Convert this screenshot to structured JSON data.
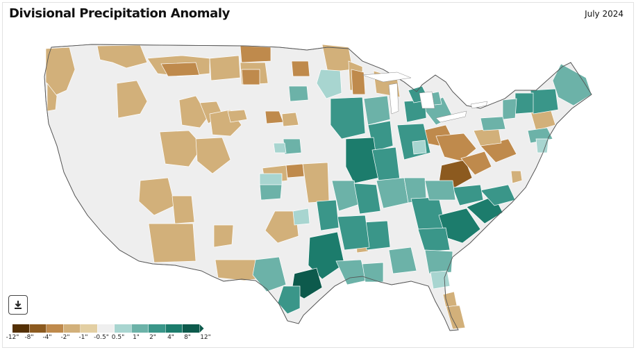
{
  "header": {
    "title": "Divisional Precipitation Anomaly",
    "date": "July 2024"
  },
  "toolbar": {
    "download_icon": "download-icon"
  },
  "legend": {
    "labels": [
      "-12\"",
      "-8\"",
      "-4\"",
      "-2\"",
      "-1\"",
      "-0.5\"",
      "0.5\"",
      "1\"",
      "2\"",
      "4\"",
      "8\"",
      "12\""
    ],
    "colors": [
      "#543005",
      "#8c5a1f",
      "#bf8a4c",
      "#d2b07a",
      "#e3cfa3",
      "#efefef",
      "#a8d5d0",
      "#6cb2a8",
      "#3a9689",
      "#1c7c6c",
      "#0d5a4c"
    ]
  },
  "map": {
    "land_color": "#eeeeee",
    "border_color": "#ffffff",
    "outline_color": "#555555"
  }
}
